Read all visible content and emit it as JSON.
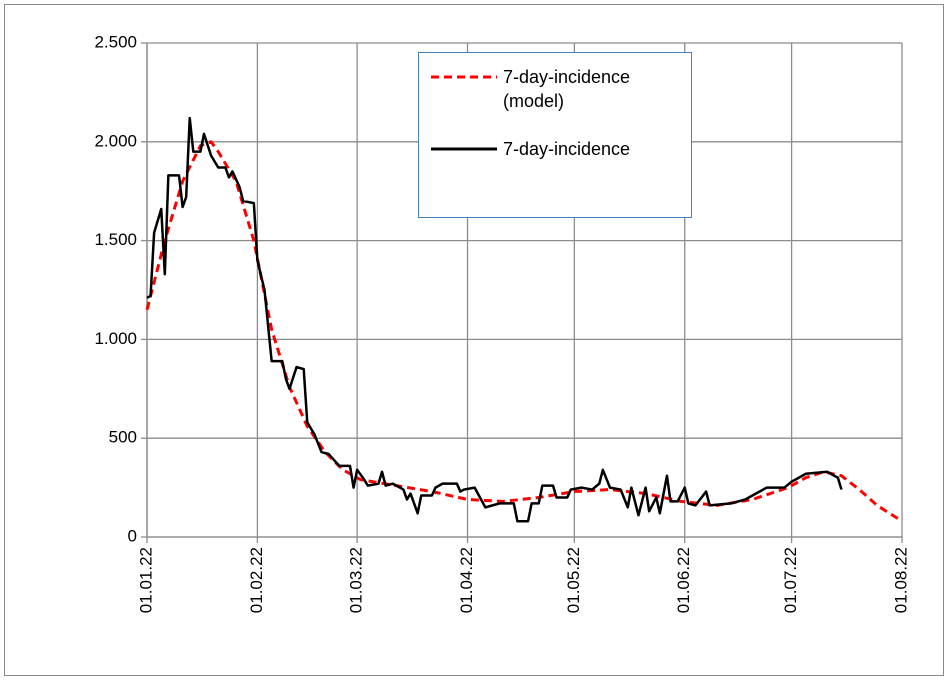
{
  "chart_data": {
    "type": "line",
    "xlim": [
      "01.01.22",
      "01.08.22"
    ],
    "xticks": [
      "01.01.22",
      "01.02.22",
      "01.03.22",
      "01.04.22",
      "01.05.22",
      "01.06.22",
      "01.07.22",
      "01.08.22"
    ],
    "ylim": [
      0,
      2500
    ],
    "yticks": [
      0,
      500,
      {
        "value": 1000,
        "label": "1.000"
      },
      {
        "value": 1500,
        "label": "1.500"
      },
      {
        "value": 2000,
        "label": "2.000"
      },
      {
        "value": 2500,
        "label": "2.500"
      }
    ],
    "grid": true,
    "series": [
      {
        "name": "7-day-incidence (model)",
        "color": "#ff0000",
        "dash": true,
        "x": [
          "01.01.22",
          "06.01.22",
          "11.01.22",
          "16.01.22",
          "19.01.22",
          "21.01.22",
          "26.01.22",
          "31.01.22",
          "05.02.22",
          "10.02.22",
          "15.02.22",
          "20.02.22",
          "25.02.22",
          "02.03.22",
          "12.03.22",
          "22.03.22",
          "01.04.22",
          "11.04.22",
          "21.04.22",
          "01.05.22",
          "11.05.22",
          "21.05.22",
          "31.05.22",
          "10.06.22",
          "20.06.22",
          "30.06.22",
          "05.07.22",
          "10.07.22",
          "15.07.22",
          "20.07.22",
          "25.07.22",
          "01.08.22"
        ],
        "values": [
          1150,
          1500,
          1800,
          1980,
          2000,
          1950,
          1800,
          1500,
          1050,
          760,
          560,
          430,
          340,
          290,
          260,
          230,
          190,
          180,
          200,
          230,
          240,
          220,
          180,
          160,
          190,
          250,
          300,
          330,
          310,
          240,
          160,
          80
        ]
      },
      {
        "name": "7-day-incidence",
        "color": "#000000",
        "dash": false,
        "x": [
          "01.01.22",
          "02.01.22",
          "03.01.22",
          "05.01.22",
          "06.01.22",
          "07.01.22",
          "10.01.22",
          "11.01.22",
          "12.01.22",
          "13.01.22",
          "14.01.22",
          "16.01.22",
          "17.01.22",
          "19.01.22",
          "21.01.22",
          "23.01.22",
          "24.01.22",
          "25.01.22",
          "27.01.22",
          "28.01.22",
          "31.01.22",
          "01.02.22",
          "03.02.22",
          "05.02.22",
          "08.02.22",
          "09.02.22",
          "10.02.22",
          "12.02.22",
          "14.02.22",
          "15.02.22",
          "17.02.22",
          "19.02.22",
          "21.02.22",
          "23.02.22",
          "24.02.22",
          "27.02.22",
          "28.02.22",
          "01.03.22",
          "03.03.22",
          "04.03.22",
          "07.03.22",
          "08.03.22",
          "09.03.22",
          "11.03.22",
          "14.03.22",
          "15.03.22",
          "16.03.22",
          "18.03.22",
          "19.03.22",
          "22.03.22",
          "23.03.22",
          "25.03.22",
          "29.03.22",
          "30.03.22",
          "31.03.22",
          "03.04.22",
          "06.04.22",
          "08.04.22",
          "10.04.22",
          "14.04.22",
          "15.04.22",
          "18.04.22",
          "19.04.22",
          "21.04.22",
          "22.04.22",
          "25.04.22",
          "26.04.22",
          "29.04.22",
          "30.04.22",
          "03.05.22",
          "06.05.22",
          "08.05.22",
          "09.05.22",
          "11.05.22",
          "14.05.22",
          "16.05.22",
          "17.05.22",
          "19.05.22",
          "21.05.22",
          "22.05.22",
          "24.05.22",
          "25.05.22",
          "27.05.22",
          "28.05.22",
          "30.05.22",
          "01.06.22",
          "02.06.22",
          "04.06.22",
          "07.06.22",
          "08.06.22",
          "14.06.22",
          "18.06.22",
          "20.06.22",
          "24.06.22",
          "29.06.22",
          "01.07.22",
          "03.07.22",
          "05.07.22",
          "11.07.22",
          "14.07.22",
          "15.07.22"
        ],
        "values": [
          1210,
          1220,
          1540,
          1660,
          1330,
          1830,
          1830,
          1670,
          1720,
          2120,
          1950,
          1950,
          2040,
          1930,
          1870,
          1870,
          1820,
          1850,
          1770,
          1700,
          1690,
          1400,
          1250,
          890,
          890,
          800,
          750,
          860,
          850,
          580,
          520,
          430,
          420,
          380,
          360,
          360,
          250,
          340,
          290,
          260,
          270,
          330,
          260,
          270,
          240,
          190,
          220,
          120,
          210,
          210,
          250,
          270,
          270,
          230,
          240,
          250,
          150,
          160,
          170,
          170,
          80,
          80,
          170,
          170,
          260,
          260,
          200,
          200,
          240,
          250,
          240,
          270,
          340,
          250,
          240,
          150,
          250,
          110,
          250,
          130,
          200,
          120,
          310,
          180,
          180,
          250,
          170,
          160,
          230,
          160,
          170,
          190,
          210,
          250,
          250,
          280,
          300,
          320,
          330,
          300,
          240
        ]
      }
    ]
  }
}
